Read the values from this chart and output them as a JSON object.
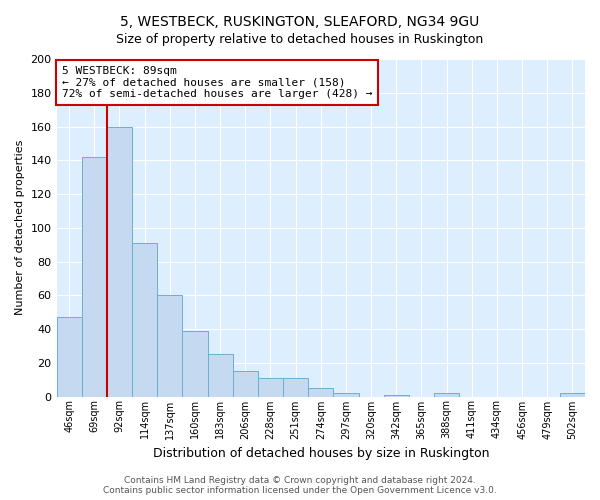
{
  "title": "5, WESTBECK, RUSKINGTON, SLEAFORD, NG34 9GU",
  "subtitle": "Size of property relative to detached houses in Ruskington",
  "xlabel": "Distribution of detached houses by size in Ruskington",
  "ylabel": "Number of detached properties",
  "bin_labels": [
    "46sqm",
    "69sqm",
    "92sqm",
    "114sqm",
    "137sqm",
    "160sqm",
    "183sqm",
    "206sqm",
    "228sqm",
    "251sqm",
    "274sqm",
    "297sqm",
    "320sqm",
    "342sqm",
    "365sqm",
    "388sqm",
    "411sqm",
    "434sqm",
    "456sqm",
    "479sqm",
    "502sqm"
  ],
  "bar_values": [
    47,
    142,
    160,
    91,
    60,
    39,
    25,
    15,
    11,
    11,
    5,
    2,
    0,
    1,
    0,
    2,
    0,
    0,
    0,
    0,
    2
  ],
  "bar_color": "#c5d9f0",
  "bar_edge_color": "#6baed6",
  "vline_bin_index": 1.5,
  "annotation_title": "5 WESTBECK: 89sqm",
  "annotation_line1": "← 27% of detached houses are smaller (158)",
  "annotation_line2": "72% of semi-detached houses are larger (428) →",
  "annotation_box_facecolor": "#ffffff",
  "annotation_box_edgecolor": "#cc0000",
  "vline_color": "#cc0000",
  "footer_line1": "Contains HM Land Registry data © Crown copyright and database right 2024.",
  "footer_line2": "Contains public sector information licensed under the Open Government Licence v3.0.",
  "ylim": [
    0,
    200
  ],
  "yticks": [
    0,
    20,
    40,
    60,
    80,
    100,
    120,
    140,
    160,
    180,
    200
  ],
  "bg_color": "#ddeeff",
  "title_fontsize": 10,
  "subtitle_fontsize": 9
}
